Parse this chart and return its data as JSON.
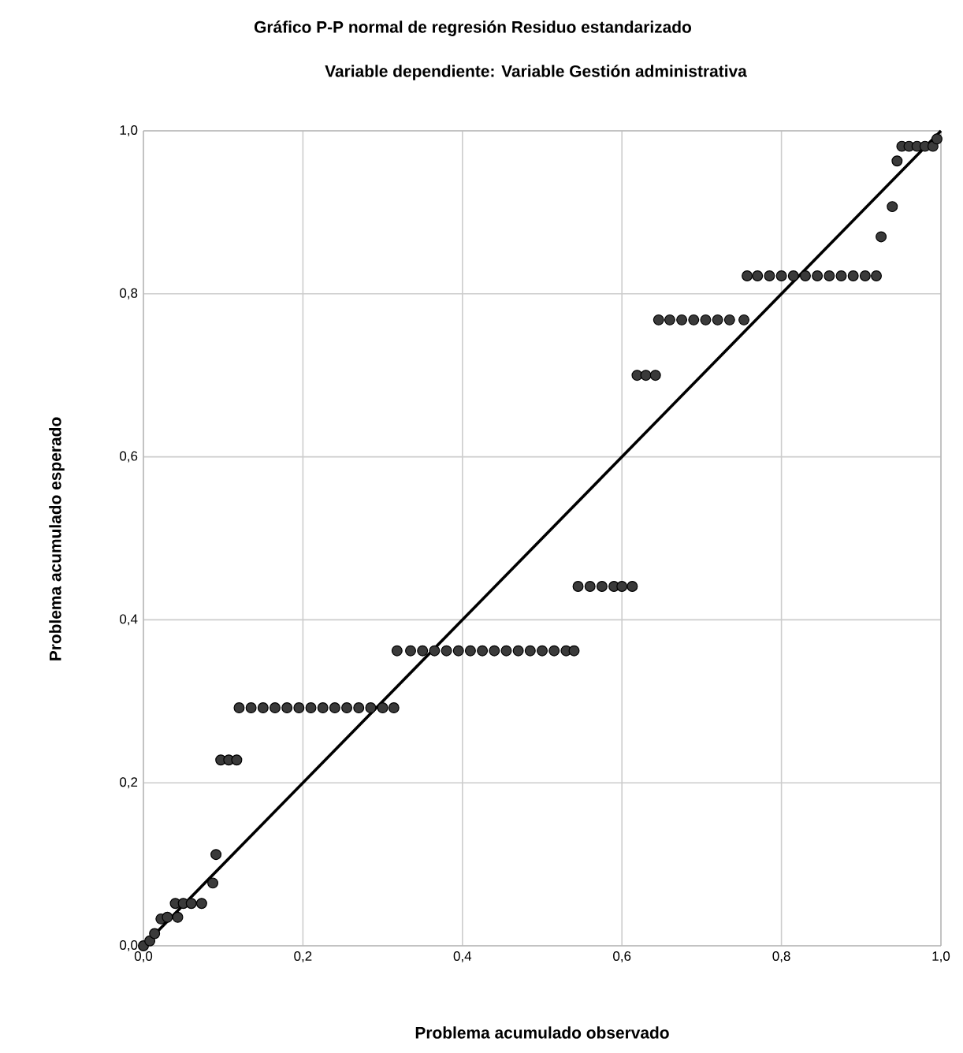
{
  "chart_data": {
    "type": "scatter",
    "title": "Gráfico P-P normal de regresión Residuo estandarizado",
    "subtitle": "Variable dependiente: Variable Gestión administrativa",
    "xlabel": "Problema acumulado observado",
    "ylabel": "Problema acumulado esperado",
    "xlim": [
      0,
      1
    ],
    "ylim": [
      0,
      1
    ],
    "xticks": [
      {
        "value": 0,
        "label": "0,0"
      },
      {
        "value": 0.2,
        "label": "0,2"
      },
      {
        "value": 0.4,
        "label": "0,4"
      },
      {
        "value": 0.6,
        "label": "0,6"
      },
      {
        "value": 0.8,
        "label": "0,8"
      },
      {
        "value": 1,
        "label": "1,0"
      }
    ],
    "yticks": [
      {
        "value": 0,
        "label": "0,0"
      },
      {
        "value": 0.2,
        "label": "0,2"
      },
      {
        "value": 0.4,
        "label": "0,4"
      },
      {
        "value": 0.6,
        "label": "0,6"
      },
      {
        "value": 0.8,
        "label": "0,8"
      },
      {
        "value": 1,
        "label": "1,0"
      }
    ],
    "grid": true,
    "marker": "circle",
    "series": [
      {
        "color": "#3a3a3a",
        "x": [
          0,
          0.008,
          0.014,
          0.022,
          0.03,
          0.043,
          0.04,
          0.05,
          0.06,
          0.073,
          0.087,
          0.091,
          0.097,
          0.107,
          0.117,
          0.12,
          0.135,
          0.15,
          0.165,
          0.18,
          0.195,
          0.21,
          0.225,
          0.24,
          0.255,
          0.27,
          0.285,
          0.3,
          0.314,
          0.318,
          0.335,
          0.35,
          0.365,
          0.38,
          0.395,
          0.41,
          0.425,
          0.44,
          0.455,
          0.47,
          0.485,
          0.5,
          0.515,
          0.53,
          0.54,
          0.545,
          0.56,
          0.575,
          0.59,
          0.6,
          0.613,
          0.619,
          0.63,
          0.642,
          0.646,
          0.66,
          0.675,
          0.69,
          0.705,
          0.72,
          0.735,
          0.753,
          0.757,
          0.77,
          0.785,
          0.8,
          0.815,
          0.83,
          0.845,
          0.86,
          0.875,
          0.89,
          0.905,
          0.919,
          0.925,
          0.939,
          0.945,
          0.951,
          0.96,
          0.97,
          0.98,
          0.99,
          0.995
        ],
        "values": [
          0,
          0.006,
          0.015,
          0.033,
          0.035,
          0.035,
          0.052,
          0.052,
          0.052,
          0.052,
          0.077,
          0.112,
          0.228,
          0.228,
          0.228,
          0.292,
          0.292,
          0.292,
          0.292,
          0.292,
          0.292,
          0.292,
          0.292,
          0.292,
          0.292,
          0.292,
          0.292,
          0.292,
          0.292,
          0.362,
          0.362,
          0.362,
          0.362,
          0.362,
          0.362,
          0.362,
          0.362,
          0.362,
          0.362,
          0.362,
          0.362,
          0.362,
          0.362,
          0.362,
          0.362,
          0.441,
          0.441,
          0.441,
          0.441,
          0.441,
          0.441,
          0.7,
          0.7,
          0.7,
          0.768,
          0.768,
          0.768,
          0.768,
          0.768,
          0.768,
          0.768,
          0.768,
          0.822,
          0.822,
          0.822,
          0.822,
          0.822,
          0.822,
          0.822,
          0.822,
          0.822,
          0.822,
          0.822,
          0.822,
          0.87,
          0.907,
          0.963,
          0.981,
          0.981,
          0.981,
          0.981,
          0.981,
          0.99
        ]
      },
      {
        "type": "line",
        "color": "#000000",
        "marker": "none",
        "x": [
          0,
          1
        ],
        "values": [
          0,
          1
        ]
      }
    ]
  }
}
